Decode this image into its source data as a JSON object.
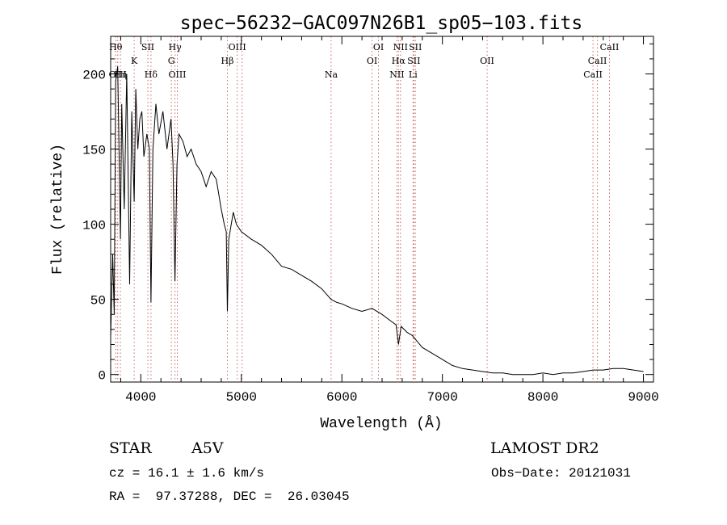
{
  "chart_data": {
    "type": "line",
    "title": "spec−56232−GAC097N26B1_sp05−103.fits",
    "xlabel": "Wavelength (Å)",
    "ylabel": "Flux (relative)",
    "xlim": [
      3700,
      9100
    ],
    "ylim": [
      -5,
      225
    ],
    "x_ticks": [
      4000,
      5000,
      6000,
      7000,
      8000,
      9000
    ],
    "x_tick_labels": [
      "4000",
      "5000",
      "6000",
      "7000",
      "8000",
      "9000"
    ],
    "y_ticks": [
      0,
      50,
      100,
      150,
      200
    ],
    "y_tick_labels": [
      "0",
      "50",
      "100",
      "150",
      "200"
    ],
    "grid": false,
    "line_color": "#000000",
    "marker_line_color": "#cc6666",
    "series": [
      {
        "x": [
          3700,
          3720,
          3735,
          3750,
          3770,
          3797,
          3810,
          3835,
          3860,
          3889,
          3910,
          3934,
          3950,
          3970,
          3990,
          4010,
          4030,
          4060,
          4085,
          4101,
          4120,
          4150,
          4180,
          4220,
          4260,
          4300,
          4320,
          4340,
          4360,
          4380,
          4420,
          4460,
          4500,
          4550,
          4600,
          4650,
          4700,
          4750,
          4800,
          4830,
          4850,
          4861,
          4875,
          4900,
          4920,
          4950,
          5000,
          5100,
          5200,
          5300,
          5400,
          5500,
          5600,
          5700,
          5800,
          5893,
          5950,
          6000,
          6100,
          6200,
          6300,
          6400,
          6500,
          6540,
          6563,
          6590,
          6650,
          6700,
          6750,
          6800,
          6900,
          7000,
          7100,
          7200,
          7300,
          7400,
          7500,
          7600,
          7700,
          7800,
          7900,
          8000,
          8100,
          8200,
          8300,
          8400,
          8500,
          8600,
          8700,
          8800,
          8900,
          9000
        ],
        "values": [
          25,
          80,
          40,
          195,
          205,
          90,
          180,
          110,
          200,
          60,
          175,
          115,
          190,
          150,
          170,
          175,
          145,
          160,
          150,
          48,
          150,
          180,
          160,
          175,
          150,
          170,
          140,
          62,
          140,
          160,
          155,
          145,
          150,
          140,
          135,
          125,
          135,
          130,
          110,
          100,
          95,
          42,
          90,
          100,
          108,
          100,
          95,
          90,
          86,
          80,
          72,
          70,
          66,
          62,
          57,
          50,
          48,
          47,
          44,
          42,
          44,
          40,
          35,
          33,
          20,
          32,
          28,
          26,
          22,
          18,
          14,
          10,
          6,
          4,
          3,
          2,
          1,
          1,
          0,
          0,
          0,
          1,
          0,
          1,
          1,
          2,
          3,
          3,
          4,
          4,
          3,
          2
        ]
      }
    ],
    "lines": [
      {
        "x": 3750,
        "label": "Hθ",
        "row": 1
      },
      {
        "x": 3797,
        "label": "Hη",
        "row": 3
      },
      {
        "x": 3770,
        "label": "OIII",
        "row": 3
      },
      {
        "x": 3934,
        "label": "K",
        "row": 2
      },
      {
        "x": 4070,
        "label": "SII",
        "row": 1
      },
      {
        "x": 4101,
        "label": "Hδ",
        "row": 3
      },
      {
        "x": 4304,
        "label": "G",
        "row": 2
      },
      {
        "x": 4340,
        "label": "Hγ",
        "row": 1
      },
      {
        "x": 4363,
        "label": "OIII",
        "row": 3
      },
      {
        "x": 4861,
        "label": "Hβ",
        "row": 2
      },
      {
        "x": 4959,
        "label": "OIII",
        "row": 1
      },
      {
        "x": 5007,
        "label": "",
        "row": 0
      },
      {
        "x": 5893,
        "label": "Na",
        "row": 3
      },
      {
        "x": 6300,
        "label": "OI",
        "row": 2
      },
      {
        "x": 6364,
        "label": "OI",
        "row": 1
      },
      {
        "x": 6548,
        "label": "NII",
        "row": 3
      },
      {
        "x": 6563,
        "label": "Hα",
        "row": 2
      },
      {
        "x": 6583,
        "label": "NII",
        "row": 1
      },
      {
        "x": 6708,
        "label": "Li",
        "row": 3
      },
      {
        "x": 6716,
        "label": "SII",
        "row": 2
      },
      {
        "x": 6731,
        "label": "SII",
        "row": 1
      },
      {
        "x": 7445,
        "label": "OII",
        "row": 2
      },
      {
        "x": 8498,
        "label": "CaII",
        "row": 3
      },
      {
        "x": 8542,
        "label": "CaII",
        "row": 2
      },
      {
        "x": 8662,
        "label": "CaII",
        "row": 1
      }
    ]
  },
  "info": {
    "object_class": "STAR",
    "subclass": "A5V",
    "survey": "LAMOST DR2",
    "cz": "cz = 16.1 ± 1.6 km/s",
    "obs_date": "Obs−Date: 20121031",
    "coords": "RA =  97.37288, DEC =  26.03045"
  }
}
